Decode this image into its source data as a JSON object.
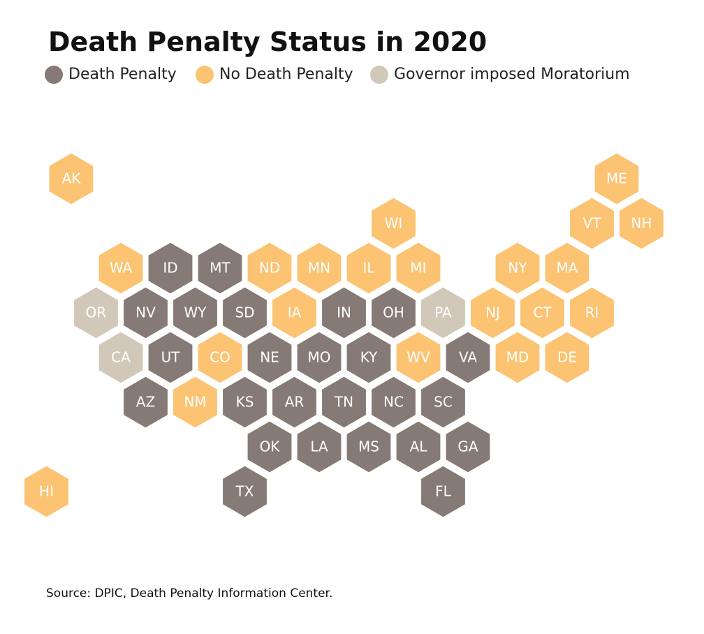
{
  "title": "Death Penalty Status in 2020",
  "colors": {
    "death_penalty": "#857a75",
    "no_death_penalty": "#fbc372",
    "moratorium": "#d1c8b9",
    "hex_label": "#ffffff"
  },
  "legend": [
    {
      "label": "Death Penalty",
      "status": "death_penalty"
    },
    {
      "label": "No Death Penalty",
      "status": "no_death_penalty"
    },
    {
      "label": "Governor imposed Moratorium",
      "status": "moratorium"
    }
  ],
  "source": "Source: DPIC, Death Penalty Information Center.",
  "states": [
    {
      "abbr": "AK",
      "row": 0,
      "col": 0,
      "status": "no_death_penalty"
    },
    {
      "abbr": "ME",
      "row": 0,
      "col": 11,
      "status": "no_death_penalty"
    },
    {
      "abbr": "WI",
      "row": 1,
      "col": 7,
      "status": "no_death_penalty"
    },
    {
      "abbr": "VT",
      "row": 1,
      "col": 11,
      "status": "no_death_penalty"
    },
    {
      "abbr": "NH",
      "row": 1,
      "col": 12,
      "status": "no_death_penalty"
    },
    {
      "abbr": "WA",
      "row": 2,
      "col": 1,
      "status": "no_death_penalty"
    },
    {
      "abbr": "ID",
      "row": 2,
      "col": 2,
      "status": "death_penalty"
    },
    {
      "abbr": "MT",
      "row": 2,
      "col": 3,
      "status": "death_penalty"
    },
    {
      "abbr": "ND",
      "row": 2,
      "col": 4,
      "status": "no_death_penalty"
    },
    {
      "abbr": "MN",
      "row": 2,
      "col": 5,
      "status": "no_death_penalty"
    },
    {
      "abbr": "IL",
      "row": 2,
      "col": 6,
      "status": "no_death_penalty"
    },
    {
      "abbr": "MI",
      "row": 2,
      "col": 7,
      "status": "no_death_penalty"
    },
    {
      "abbr": "NY",
      "row": 2,
      "col": 9,
      "status": "no_death_penalty"
    },
    {
      "abbr": "MA",
      "row": 2,
      "col": 10,
      "status": "no_death_penalty"
    },
    {
      "abbr": "OR",
      "row": 3,
      "col": 1,
      "status": "moratorium"
    },
    {
      "abbr": "NV",
      "row": 3,
      "col": 2,
      "status": "death_penalty"
    },
    {
      "abbr": "WY",
      "row": 3,
      "col": 3,
      "status": "death_penalty"
    },
    {
      "abbr": "SD",
      "row": 3,
      "col": 4,
      "status": "death_penalty"
    },
    {
      "abbr": "IA",
      "row": 3,
      "col": 5,
      "status": "no_death_penalty"
    },
    {
      "abbr": "IN",
      "row": 3,
      "col": 6,
      "status": "death_penalty"
    },
    {
      "abbr": "OH",
      "row": 3,
      "col": 7,
      "status": "death_penalty"
    },
    {
      "abbr": "PA",
      "row": 3,
      "col": 8,
      "status": "moratorium"
    },
    {
      "abbr": "NJ",
      "row": 3,
      "col": 9,
      "status": "no_death_penalty"
    },
    {
      "abbr": "CT",
      "row": 3,
      "col": 10,
      "status": "no_death_penalty"
    },
    {
      "abbr": "RI",
      "row": 3,
      "col": 11,
      "status": "no_death_penalty"
    },
    {
      "abbr": "CA",
      "row": 4,
      "col": 1,
      "status": "moratorium"
    },
    {
      "abbr": "UT",
      "row": 4,
      "col": 2,
      "status": "death_penalty"
    },
    {
      "abbr": "CO",
      "row": 4,
      "col": 3,
      "status": "no_death_penalty"
    },
    {
      "abbr": "NE",
      "row": 4,
      "col": 4,
      "status": "death_penalty"
    },
    {
      "abbr": "MO",
      "row": 4,
      "col": 5,
      "status": "death_penalty"
    },
    {
      "abbr": "KY",
      "row": 4,
      "col": 6,
      "status": "death_penalty"
    },
    {
      "abbr": "WV",
      "row": 4,
      "col": 7,
      "status": "no_death_penalty"
    },
    {
      "abbr": "VA",
      "row": 4,
      "col": 8,
      "status": "death_penalty"
    },
    {
      "abbr": "MD",
      "row": 4,
      "col": 9,
      "status": "no_death_penalty"
    },
    {
      "abbr": "DE",
      "row": 4,
      "col": 10,
      "status": "no_death_penalty"
    },
    {
      "abbr": "AZ",
      "row": 5,
      "col": 2,
      "status": "death_penalty"
    },
    {
      "abbr": "NM",
      "row": 5,
      "col": 3,
      "status": "no_death_penalty"
    },
    {
      "abbr": "KS",
      "row": 5,
      "col": 4,
      "status": "death_penalty"
    },
    {
      "abbr": "AR",
      "row": 5,
      "col": 5,
      "status": "death_penalty"
    },
    {
      "abbr": "TN",
      "row": 5,
      "col": 6,
      "status": "death_penalty"
    },
    {
      "abbr": "NC",
      "row": 5,
      "col": 7,
      "status": "death_penalty"
    },
    {
      "abbr": "SC",
      "row": 5,
      "col": 8,
      "status": "death_penalty"
    },
    {
      "abbr": "OK",
      "row": 6,
      "col": 4,
      "status": "death_penalty"
    },
    {
      "abbr": "LA",
      "row": 6,
      "col": 5,
      "status": "death_penalty"
    },
    {
      "abbr": "MS",
      "row": 6,
      "col": 6,
      "status": "death_penalty"
    },
    {
      "abbr": "AL",
      "row": 6,
      "col": 7,
      "status": "death_penalty"
    },
    {
      "abbr": "GA",
      "row": 6,
      "col": 8,
      "status": "death_penalty"
    },
    {
      "abbr": "HI",
      "row": 7,
      "col": 0,
      "status": "no_death_penalty"
    },
    {
      "abbr": "TX",
      "row": 7,
      "col": 4,
      "status": "death_penalty"
    },
    {
      "abbr": "FL",
      "row": 7,
      "col": 8,
      "status": "death_penalty"
    }
  ]
}
